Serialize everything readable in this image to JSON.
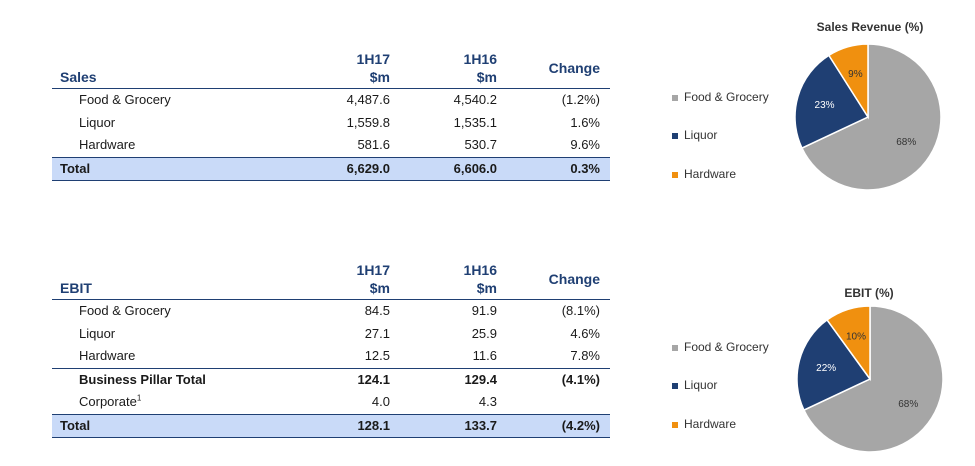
{
  "sales_table": {
    "title": "Sales",
    "col1": [
      "1H17",
      "$m"
    ],
    "col2": [
      "1H16",
      "$m"
    ],
    "col3": "Change",
    "rows": [
      {
        "label": "Food & Grocery",
        "v1": "4,487.6",
        "v2": "4,540.2",
        "chg": "(1.2%)"
      },
      {
        "label": "Liquor",
        "v1": "1,559.8",
        "v2": "1,535.1",
        "chg": "1.6%"
      },
      {
        "label": "Hardware",
        "v1": "581.6",
        "v2": "530.7",
        "chg": "9.6%"
      }
    ],
    "total": {
      "label": "Total",
      "v1": "6,629.0",
      "v2": "6,606.0",
      "chg": "0.3%"
    }
  },
  "ebit_table": {
    "title": "EBIT",
    "col1": [
      "1H17",
      "$m"
    ],
    "col2": [
      "1H16",
      "$m"
    ],
    "col3": "Change",
    "rows": [
      {
        "label": "Food & Grocery",
        "v1": "84.5",
        "v2": "91.9",
        "chg": "(8.1%)"
      },
      {
        "label": "Liquor",
        "v1": "27.1",
        "v2": "25.9",
        "chg": "4.6%"
      },
      {
        "label": "Hardware",
        "v1": "12.5",
        "v2": "11.6",
        "chg": "7.8%"
      }
    ],
    "pillar_total": {
      "label": "Business Pillar Total",
      "v1": "124.1",
      "v2": "129.4",
      "chg": "(4.1%)"
    },
    "corporate": {
      "label": "Corporate",
      "sup": "1",
      "v1": "4.0",
      "v2": "4.3",
      "chg": ""
    },
    "total": {
      "label": "Total",
      "v1": "128.1",
      "v2": "133.7",
      "chg": "(4.2%)"
    }
  },
  "colors": {
    "food_grocery": "#a6a6a6",
    "liquor": "#1f3f73",
    "hardware": "#f0900f",
    "total_fill": "#c9daf8",
    "header_text": "#1f3f73"
  },
  "chart_data": [
    {
      "type": "pie",
      "title": "Sales Revenue (%)",
      "categories": [
        "Food & Grocery",
        "Liquor",
        "Hardware"
      ],
      "values": [
        68,
        23,
        9
      ],
      "data_labels": [
        "68%",
        "23%",
        "9%"
      ],
      "legend": "left"
    },
    {
      "type": "pie",
      "title": "EBIT (%)",
      "categories": [
        "Food & Grocery",
        "Liquor",
        "Hardware"
      ],
      "values": [
        68,
        22,
        10
      ],
      "data_labels": [
        "68%",
        "22%",
        "10%"
      ],
      "legend": "left"
    }
  ]
}
